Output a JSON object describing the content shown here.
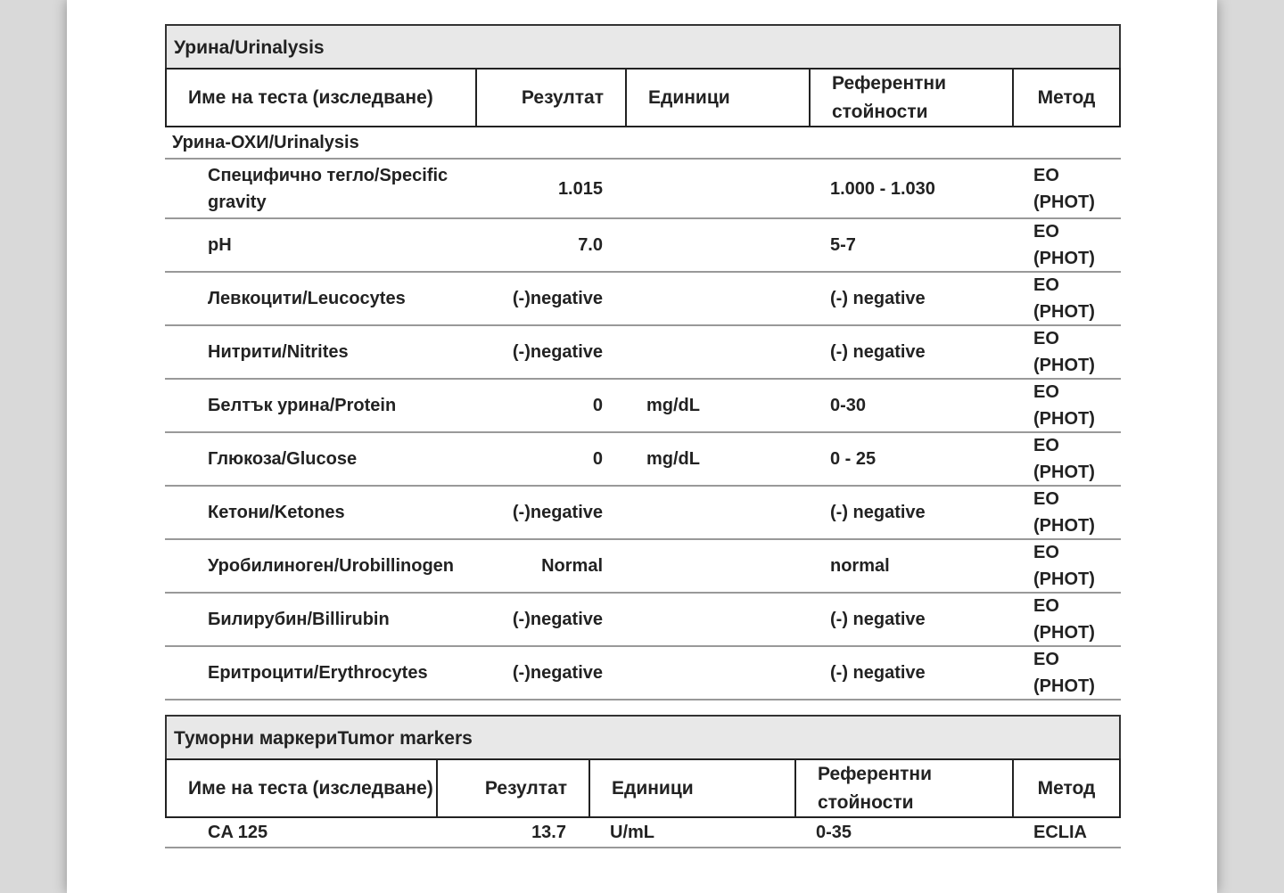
{
  "urinalysis": {
    "title": "Урина/Urinalysis",
    "columns": {
      "name": "Име на теста (изследване)",
      "result": "Резултат",
      "units": "Единици",
      "reference": "Референтни стойности",
      "method": "Метод"
    },
    "subgroup": "Урина-ОХИ/Urinalysis",
    "rows": [
      {
        "name": "Специфично тегло/Specific gravity",
        "result": "1.015",
        "units": "",
        "reference": "1.000 - 1.030",
        "method": [
          "EO",
          "(PHOT)"
        ]
      },
      {
        "name": "pH",
        "result": "7.0",
        "units": "",
        "reference": "5-7",
        "method": [
          "EO",
          "(PHOT)"
        ]
      },
      {
        "name": "Левкоцити/Leucocytes",
        "result": "(-)negative",
        "units": "",
        "reference": "(-) negative",
        "method": [
          "EO",
          "(PHOT)"
        ]
      },
      {
        "name": "Нитрити/Nitrites",
        "result": "(-)negative",
        "units": "",
        "reference": "(-) negative",
        "method": [
          "EO",
          "(PHOT)"
        ]
      },
      {
        "name": "Белтък урина/Protein",
        "result": "0",
        "units": "mg/dL",
        "reference": "0-30",
        "method": [
          "EO",
          "(PHOT)"
        ]
      },
      {
        "name": "Глюкоза/Glucose",
        "result": "0",
        "units": "mg/dL",
        "reference": "0 - 25",
        "method": [
          "EO",
          "(PHOT)"
        ]
      },
      {
        "name": "Кетони/Ketones",
        "result": "(-)negative",
        "units": "",
        "reference": "(-) negative",
        "method": [
          "EO",
          "(PHOT)"
        ]
      },
      {
        "name": "Уробилиноген/Urobillinogen",
        "result": "Normal",
        "units": "",
        "reference": "normal",
        "method": [
          "EO",
          "(PHOT)"
        ]
      },
      {
        "name": "Билирубин/Billirubin",
        "result": "(-)negative",
        "units": "",
        "reference": "(-) negative",
        "method": [
          "EO",
          "(PHOT)"
        ]
      },
      {
        "name": "Еритроцити/Erythrocytes",
        "result": "(-)negative",
        "units": "",
        "reference": "(-) negative",
        "method": [
          "EO",
          "(PHOT)"
        ]
      }
    ]
  },
  "tumor": {
    "title": "Туморни маркериTumor markers",
    "columns": {
      "name": "Име на теста (изследване)",
      "result": "Резултат",
      "units": "Единици",
      "reference": "Референтни стойности",
      "method": "Метод"
    },
    "rows": [
      {
        "name": "CA 125",
        "result": "13.7",
        "units": "U/mL",
        "reference": "0-35",
        "method": [
          "ECLIA"
        ]
      }
    ]
  }
}
